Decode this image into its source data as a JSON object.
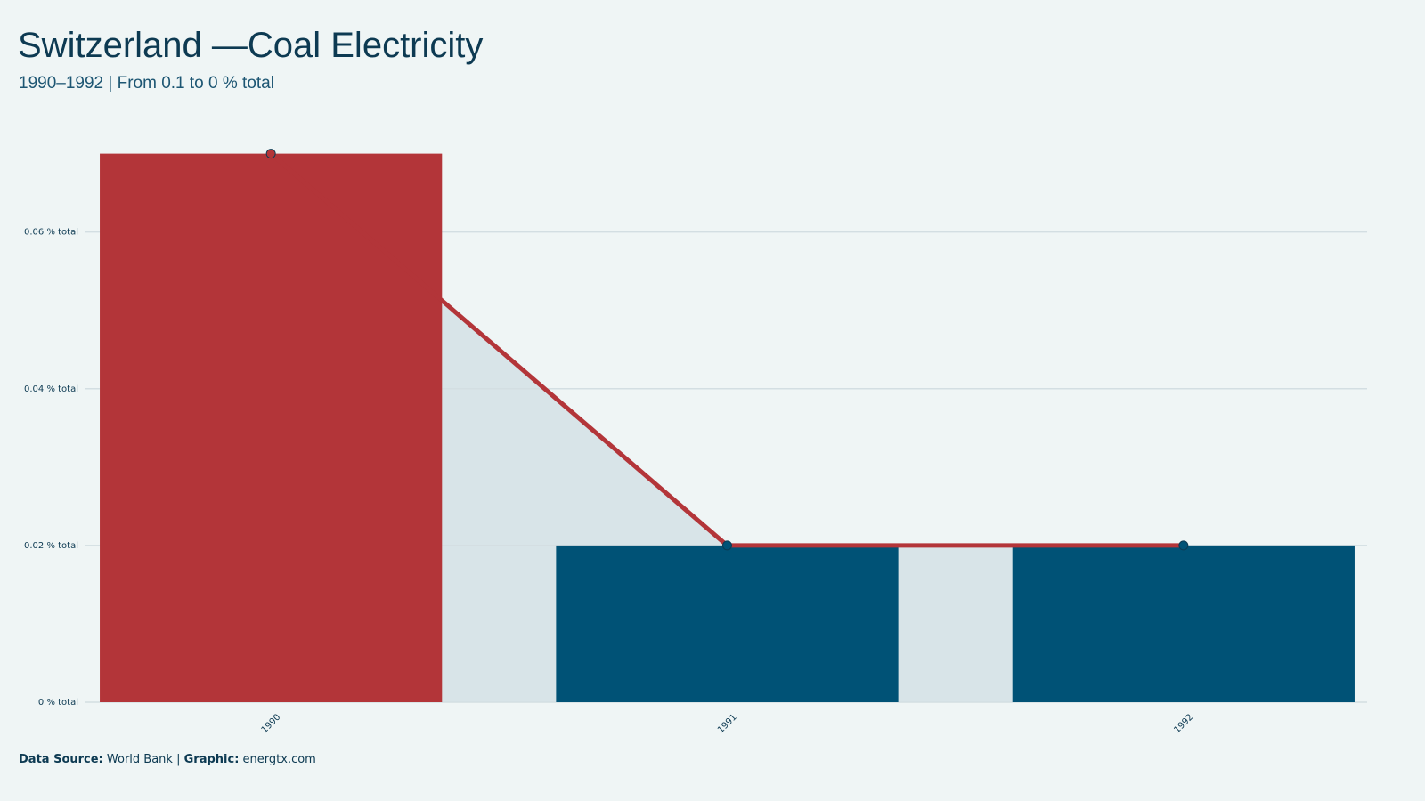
{
  "chart_data": {
    "type": "bar",
    "title": "Switzerland —Coal Electricity",
    "subtitle": "1990–1992 | From 0.1 to 0 % total",
    "categories": [
      "1990",
      "1991",
      "1992"
    ],
    "values": [
      0.07,
      0.02,
      0.02
    ],
    "colors": [
      "#b33539",
      "#005276",
      "#005276"
    ],
    "line_color": "#b33539",
    "area_color": "#d8e4e8",
    "ylim": [
      0,
      0.072
    ],
    "yticks": [
      {
        "value": 0,
        "label": "0 % total"
      },
      {
        "value": 0.02,
        "label": "0.02 % total"
      },
      {
        "value": 0.04,
        "label": "0.04 % total"
      },
      {
        "value": 0.06,
        "label": "0.06 % total"
      }
    ],
    "grid": true,
    "footer": {
      "source_label": "Data Source:",
      "source": "World Bank",
      "separator": "|",
      "graphic_label": "Graphic:",
      "graphic": "energtx.com"
    }
  }
}
